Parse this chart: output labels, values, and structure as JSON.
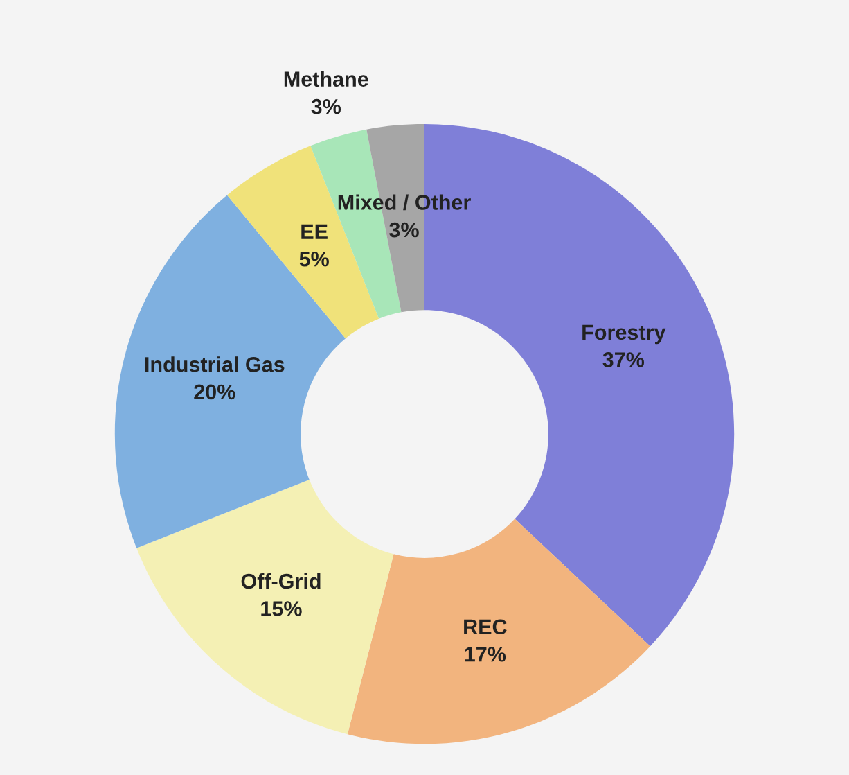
{
  "chart_data": {
    "type": "donut",
    "categories": [
      "Forestry",
      "REC",
      "Off-Grid",
      "Industrial Gas",
      "EE",
      "Methane",
      "Mixed / Other"
    ],
    "values": [
      37,
      17,
      15,
      20,
      5,
      3,
      3
    ],
    "colors": [
      "#7f7fd8",
      "#f2b47e",
      "#f4f0b4",
      "#7fb0e0",
      "#f0e27a",
      "#a8e6b8",
      "#a6a6a6"
    ],
    "value_labels": [
      "37%",
      "17%",
      "15%",
      "20%",
      "5%",
      "3%",
      "3%"
    ]
  }
}
